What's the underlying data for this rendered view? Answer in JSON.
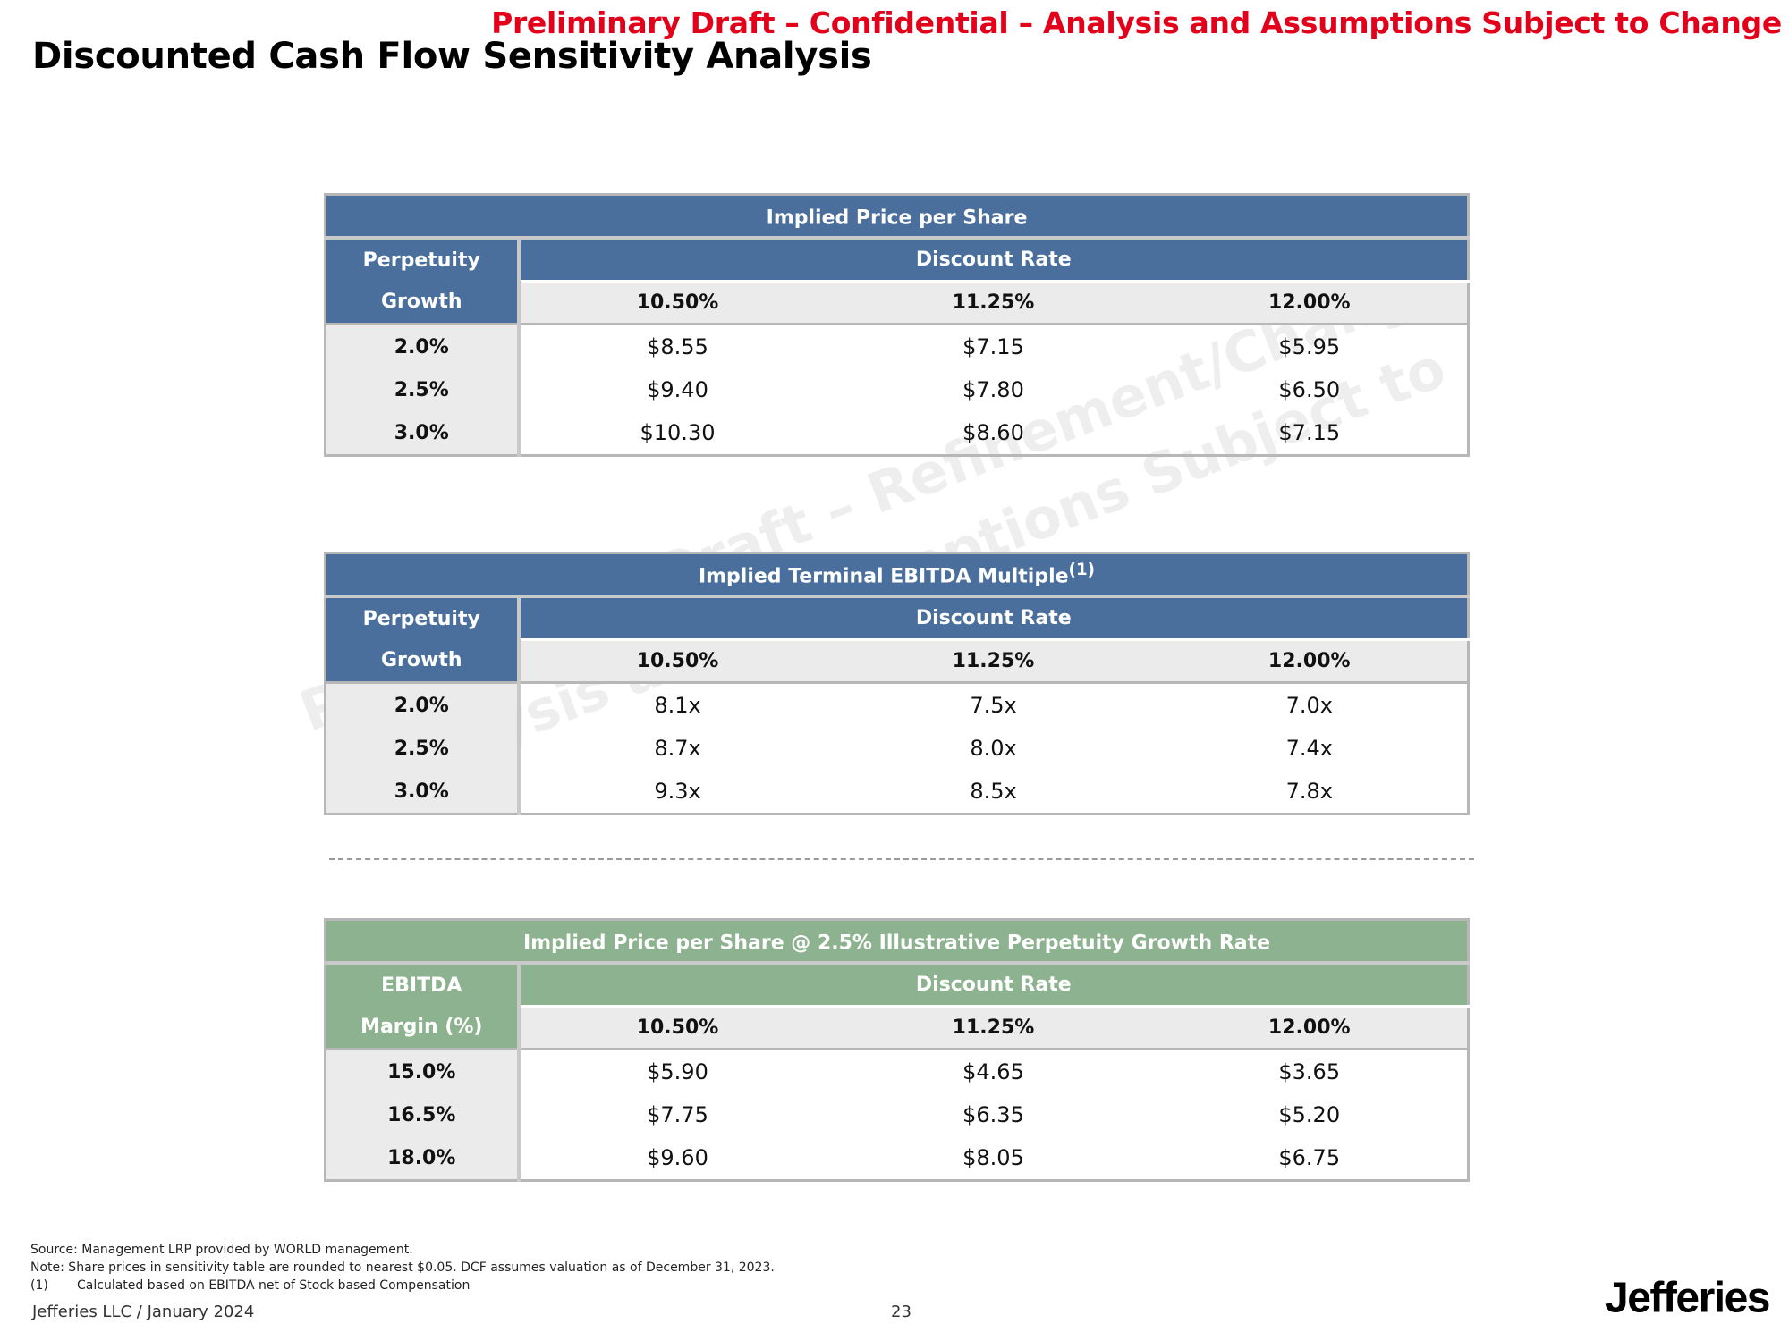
{
  "banner": "Preliminary Draft – Confidential – Analysis and Assumptions Subject to Change",
  "title": "Discounted Cash Flow Sensitivity Analysis",
  "watermark": {
    "line1": "Preliminary Draft – Refinement/Change",
    "line2": "Analysis and Assumptions Subject to"
  },
  "colors": {
    "blue_header": "#4a6f9d",
    "green_header": "#8db28f",
    "banner_red": "#e3001b"
  },
  "tables": [
    {
      "title": "Implied Price per Share",
      "title_sup": "",
      "row_header_line1": "Perpetuity",
      "row_header_line2": "Growth",
      "col_group_label": "Discount Rate",
      "columns": [
        "10.50%",
        "11.25%",
        "12.00%"
      ],
      "rows": [
        {
          "label": "2.0%",
          "values": [
            "$8.55",
            "$7.15",
            "$5.95"
          ]
        },
        {
          "label": "2.5%",
          "values": [
            "$9.40",
            "$7.80",
            "$6.50"
          ]
        },
        {
          "label": "3.0%",
          "values": [
            "$10.30",
            "$8.60",
            "$7.15"
          ]
        }
      ]
    },
    {
      "title": "Implied Terminal EBITDA Multiple",
      "title_sup": "(1)",
      "row_header_line1": "Perpetuity",
      "row_header_line2": "Growth",
      "col_group_label": "Discount Rate",
      "columns": [
        "10.50%",
        "11.25%",
        "12.00%"
      ],
      "rows": [
        {
          "label": "2.0%",
          "values": [
            "8.1x",
            "7.5x",
            "7.0x"
          ]
        },
        {
          "label": "2.5%",
          "values": [
            "8.7x",
            "8.0x",
            "7.4x"
          ]
        },
        {
          "label": "3.0%",
          "values": [
            "9.3x",
            "8.5x",
            "7.8x"
          ]
        }
      ]
    },
    {
      "title": "Implied Price per Share @ 2.5% Illustrative Perpetuity Growth Rate",
      "title_sup": "",
      "row_header_line1": "EBITDA",
      "row_header_line2": "Margin (%)",
      "col_group_label": "Discount Rate",
      "columns": [
        "10.50%",
        "11.25%",
        "12.00%"
      ],
      "rows": [
        {
          "label": "15.0%",
          "values": [
            "$5.90",
            "$4.65",
            "$3.65"
          ]
        },
        {
          "label": "16.5%",
          "values": [
            "$7.75",
            "$6.35",
            "$5.20"
          ]
        },
        {
          "label": "18.0%",
          "values": [
            "$9.60",
            "$8.05",
            "$6.75"
          ]
        }
      ]
    }
  ],
  "footnotes": {
    "source": "Source: Management LRP provided by WORLD management.",
    "note": "Note: Share prices in sensitivity table are rounded to nearest $0.05. DCF assumes valuation as of December 31, 2023.",
    "fn1_num": "(1)",
    "fn1_text": "Calculated based on EBITDA net of Stock based Compensation"
  },
  "footer": {
    "left": "Jefferies LLC / January 2024",
    "page": "23",
    "logo": "Jefferies"
  }
}
